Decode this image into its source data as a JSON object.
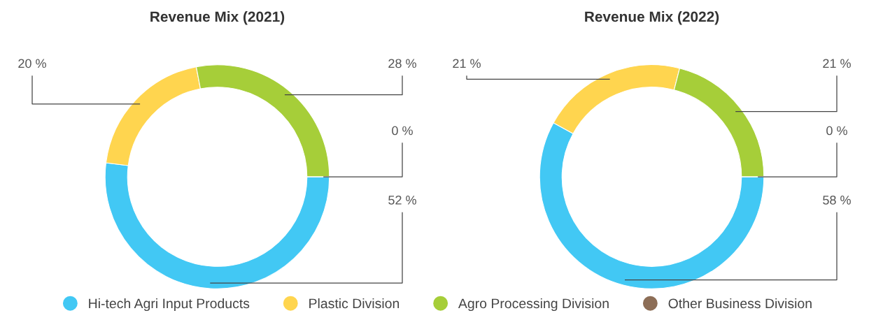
{
  "chart_data": [
    {
      "type": "donut",
      "title": "Revenue Mix (2021)",
      "categories": [
        "Hi-tech Agri Input Products",
        "Plastic Division",
        "Agro Processing Division",
        "Other Business Division"
      ],
      "values": [
        52,
        20,
        28,
        0
      ],
      "value_labels": [
        "52 %",
        "20 %",
        "28 %",
        "0 %"
      ],
      "colors": [
        "#42c8f4",
        "#ffd54f",
        "#a6ce39",
        "#8d6e57"
      ],
      "legend": "bottom"
    },
    {
      "type": "donut",
      "title": "Revenue Mix (2022)",
      "categories": [
        null,
        null,
        null,
        null
      ],
      "values": [
        58,
        21,
        21,
        0
      ],
      "value_labels": [
        "58 %",
        "21 %",
        "21 %",
        "0 %"
      ],
      "colors": [
        "#42c8f4",
        "#ffd54f",
        "#a6ce39",
        "#8d6e57"
      ]
    }
  ]
}
